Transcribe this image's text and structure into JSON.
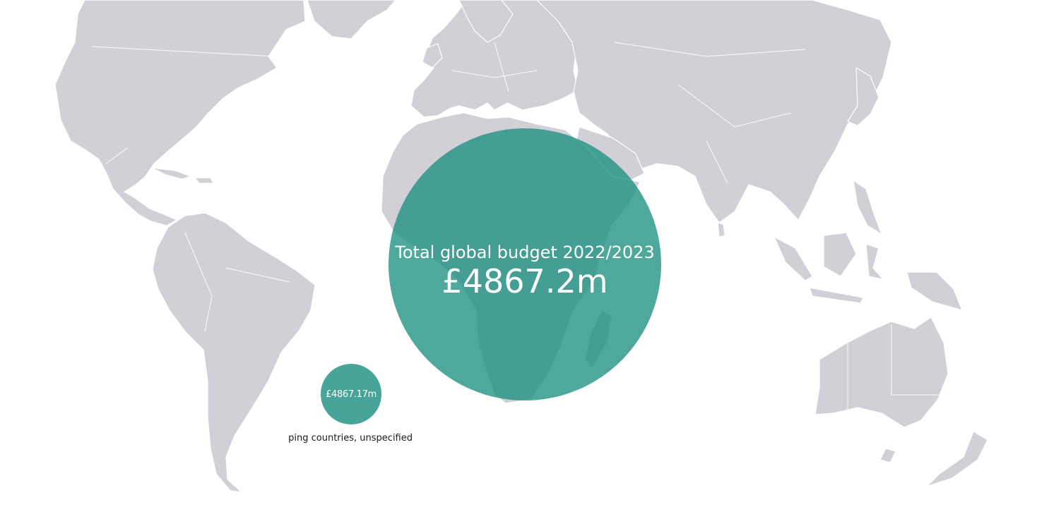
{
  "total_bubble": {
    "title": "Total global budget 2022/2023",
    "value": "£4867.2m",
    "color": "#1c9080"
  },
  "regions": [
    {
      "value": "£4867.17m",
      "label": "Developing countries, unspecified",
      "color": "#46a598"
    }
  ],
  "map_colors": {
    "land": "#d1d0d6",
    "borders": "#ffffff",
    "ocean": "#ffffff"
  }
}
